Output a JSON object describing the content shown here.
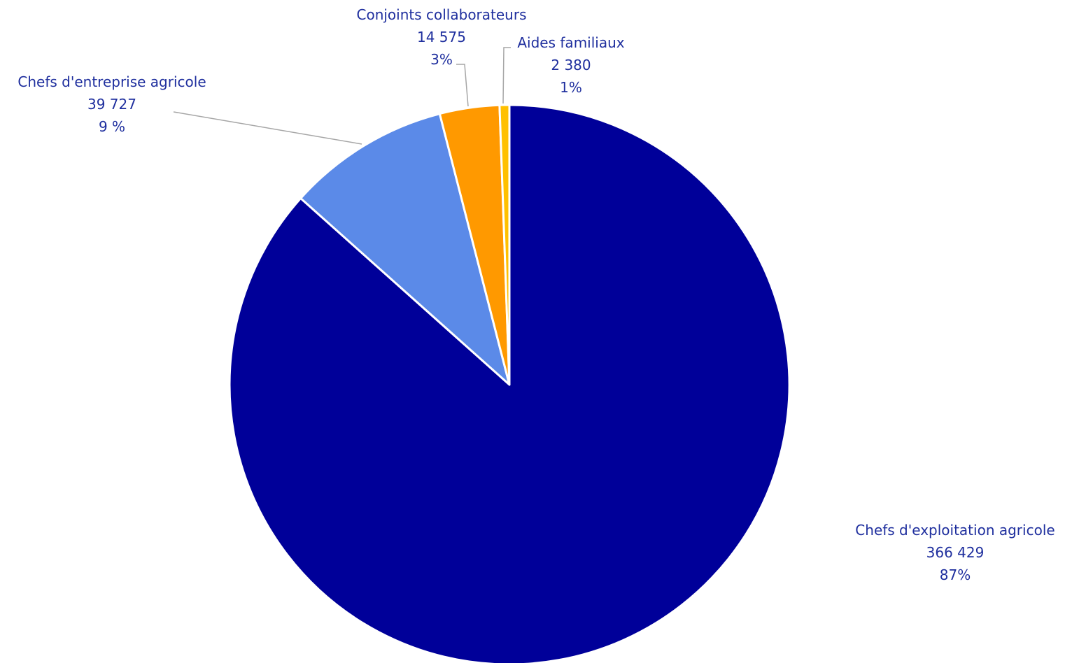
{
  "chart_data": {
    "type": "pie",
    "title": "",
    "slices": [
      {
        "name": "Chefs d'exploitation agricole",
        "value": 366429,
        "value_label": "366 429",
        "percent_label": "87%",
        "color": "#000099"
      },
      {
        "name": "Chefs d'entreprise agricole",
        "value": 39727,
        "value_label": "39 727",
        "percent_label": "9 %",
        "color": "#5b8ae8"
      },
      {
        "name": "Conjoints collaborateurs",
        "value": 14575,
        "value_label": "14 575",
        "percent_label": "3%",
        "color": "#ff9900"
      },
      {
        "name": "Aides familiaux",
        "value": 2380,
        "value_label": "2 380",
        "percent_label": "1%",
        "color": "#ffc000"
      }
    ],
    "slice_order": "clockwise from 12 o'clock: Chefs d'exploitation agricole, Chefs d'entreprise agricole, Conjoints collaborateurs, Aides familiaux",
    "legend": "none",
    "label_color": "#1f2f9e",
    "leader_line_color": "#a6a6a6"
  }
}
